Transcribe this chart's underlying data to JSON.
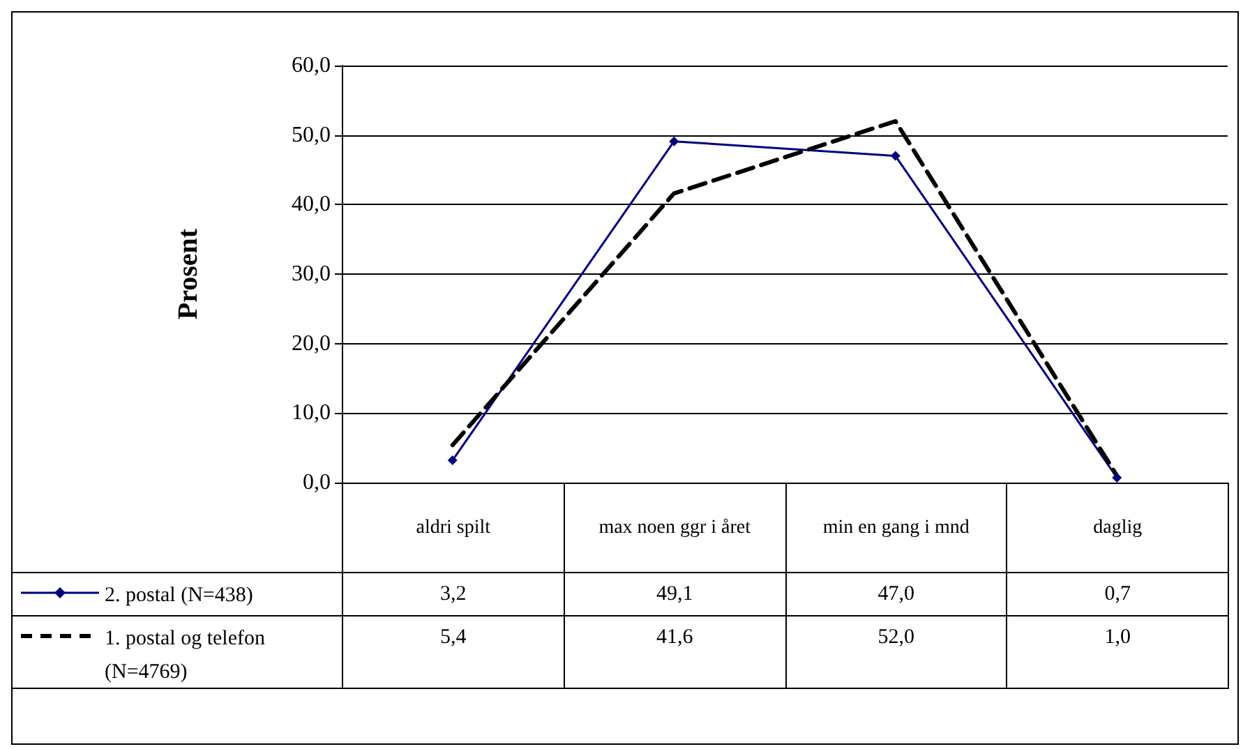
{
  "chart_data": {
    "type": "line",
    "ylabel": "Prosent",
    "categories": [
      "aldri spilt",
      "max noen ggr i året",
      "min en gang i mnd",
      "daglig"
    ],
    "series": [
      {
        "name": "2. postal (N=438)",
        "color": "#000080",
        "marker": "diamond",
        "line_style": "solid",
        "values": [
          3.2,
          49.1,
          47.0,
          0.7
        ],
        "value_labels": [
          "3,2",
          "49,1",
          "47,0",
          "0,7"
        ]
      },
      {
        "name": "1. postal og telefon (N=4769)",
        "color": "#000000",
        "marker": "none",
        "line_style": "dashed",
        "values": [
          5.4,
          41.6,
          52.0,
          1.0
        ],
        "value_labels": [
          "5,4",
          "41,6",
          "52,0",
          "1,0"
        ]
      }
    ],
    "ylim": [
      0,
      60
    ],
    "yticks": [
      {
        "value": 0,
        "label": "0,0"
      },
      {
        "value": 10,
        "label": "10,0"
      },
      {
        "value": 20,
        "label": "20,0"
      },
      {
        "value": 30,
        "label": "30,0"
      },
      {
        "value": 40,
        "label": "40,0"
      },
      {
        "value": 50,
        "label": "50,0"
      },
      {
        "value": 60,
        "label": "60,0"
      }
    ],
    "grid": "y",
    "legend": "bottom"
  }
}
